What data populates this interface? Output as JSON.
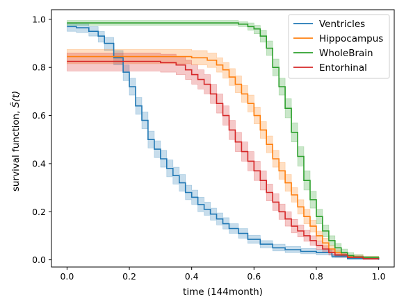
{
  "chart_data": {
    "type": "line",
    "title": "",
    "xlabel": "time (144month)",
    "ylabel_prefix": "survival function, ",
    "ylabel_math": "Ŝ(t)",
    "xlim": [
      -0.05,
      1.05
    ],
    "ylim": [
      -0.03,
      1.04
    ],
    "x_ticks": [
      0.0,
      0.2,
      0.4,
      0.6,
      0.8,
      1.0
    ],
    "x_tick_labels": [
      "0.0",
      "0.2",
      "0.4",
      "0.6",
      "0.8",
      "1.0"
    ],
    "y_ticks": [
      0.0,
      0.2,
      0.4,
      0.6,
      0.8,
      1.0
    ],
    "y_tick_labels": [
      "0.0",
      "0.2",
      "0.4",
      "0.6",
      "0.8",
      "1.0"
    ],
    "grid": false,
    "legend": "top-right",
    "confidence_band_opacity": 0.25,
    "series": [
      {
        "name": "Ventricles",
        "color": "#1f77b4",
        "x": [
          0.0,
          0.03,
          0.07,
          0.1,
          0.12,
          0.15,
          0.18,
          0.2,
          0.22,
          0.24,
          0.26,
          0.28,
          0.3,
          0.32,
          0.34,
          0.36,
          0.38,
          0.4,
          0.42,
          0.44,
          0.46,
          0.48,
          0.5,
          0.52,
          0.55,
          0.58,
          0.62,
          0.66,
          0.7,
          0.75,
          0.8,
          0.85,
          0.9,
          1.0
        ],
        "y": [
          0.97,
          0.965,
          0.95,
          0.93,
          0.9,
          0.84,
          0.78,
          0.72,
          0.64,
          0.58,
          0.5,
          0.46,
          0.42,
          0.38,
          0.35,
          0.32,
          0.28,
          0.26,
          0.23,
          0.21,
          0.19,
          0.17,
          0.15,
          0.13,
          0.11,
          0.085,
          0.065,
          0.05,
          0.042,
          0.035,
          0.03,
          0.015,
          0.005,
          0.0
        ],
        "lower": [
          0.95,
          0.945,
          0.93,
          0.905,
          0.87,
          0.81,
          0.745,
          0.685,
          0.605,
          0.545,
          0.465,
          0.425,
          0.385,
          0.345,
          0.315,
          0.285,
          0.25,
          0.23,
          0.2,
          0.185,
          0.165,
          0.145,
          0.128,
          0.11,
          0.09,
          0.068,
          0.05,
          0.037,
          0.03,
          0.025,
          0.02,
          0.008,
          0.002,
          0.0
        ],
        "upper": [
          0.985,
          0.98,
          0.97,
          0.95,
          0.925,
          0.87,
          0.81,
          0.755,
          0.675,
          0.615,
          0.535,
          0.495,
          0.455,
          0.415,
          0.385,
          0.355,
          0.31,
          0.29,
          0.26,
          0.24,
          0.215,
          0.195,
          0.175,
          0.15,
          0.13,
          0.102,
          0.08,
          0.065,
          0.056,
          0.047,
          0.042,
          0.024,
          0.012,
          0.008
        ]
      },
      {
        "name": "Hippocampus",
        "color": "#ff7f0e",
        "x": [
          0.0,
          0.1,
          0.2,
          0.3,
          0.35,
          0.4,
          0.45,
          0.48,
          0.5,
          0.52,
          0.54,
          0.56,
          0.58,
          0.6,
          0.62,
          0.64,
          0.66,
          0.68,
          0.7,
          0.72,
          0.74,
          0.76,
          0.78,
          0.8,
          0.82,
          0.84,
          0.86,
          0.88,
          0.9,
          0.95,
          1.0
        ],
        "y": [
          0.845,
          0.845,
          0.845,
          0.845,
          0.845,
          0.84,
          0.83,
          0.81,
          0.79,
          0.76,
          0.73,
          0.69,
          0.65,
          0.6,
          0.54,
          0.48,
          0.42,
          0.37,
          0.32,
          0.27,
          0.22,
          0.18,
          0.14,
          0.1,
          0.07,
          0.045,
          0.03,
          0.02,
          0.012,
          0.008,
          0.005
        ],
        "lower": [
          0.815,
          0.815,
          0.815,
          0.815,
          0.815,
          0.81,
          0.8,
          0.78,
          0.755,
          0.725,
          0.695,
          0.655,
          0.615,
          0.565,
          0.505,
          0.445,
          0.385,
          0.335,
          0.285,
          0.24,
          0.19,
          0.15,
          0.115,
          0.08,
          0.052,
          0.032,
          0.02,
          0.012,
          0.006,
          0.003,
          0.001
        ],
        "upper": [
          0.875,
          0.875,
          0.875,
          0.875,
          0.875,
          0.87,
          0.86,
          0.84,
          0.82,
          0.795,
          0.765,
          0.725,
          0.685,
          0.635,
          0.575,
          0.515,
          0.455,
          0.405,
          0.355,
          0.3,
          0.25,
          0.21,
          0.165,
          0.12,
          0.09,
          0.06,
          0.042,
          0.03,
          0.02,
          0.015,
          0.012
        ]
      },
      {
        "name": "WholeBrain",
        "color": "#2ca02c",
        "x": [
          0.0,
          0.1,
          0.2,
          0.3,
          0.4,
          0.5,
          0.55,
          0.58,
          0.6,
          0.62,
          0.64,
          0.66,
          0.68,
          0.7,
          0.72,
          0.74,
          0.76,
          0.78,
          0.8,
          0.82,
          0.84,
          0.86,
          0.88,
          0.9,
          0.92,
          0.95,
          1.0
        ],
        "y": [
          0.985,
          0.985,
          0.985,
          0.985,
          0.985,
          0.985,
          0.98,
          0.97,
          0.96,
          0.93,
          0.88,
          0.8,
          0.72,
          0.63,
          0.53,
          0.43,
          0.33,
          0.25,
          0.18,
          0.12,
          0.08,
          0.05,
          0.03,
          0.018,
          0.012,
          0.008,
          0.005
        ],
        "lower": [
          0.975,
          0.975,
          0.975,
          0.975,
          0.975,
          0.975,
          0.97,
          0.955,
          0.94,
          0.905,
          0.85,
          0.765,
          0.685,
          0.59,
          0.49,
          0.39,
          0.29,
          0.215,
          0.15,
          0.095,
          0.06,
          0.035,
          0.018,
          0.009,
          0.005,
          0.003,
          0.001
        ],
        "upper": [
          0.995,
          0.995,
          0.995,
          0.995,
          0.995,
          0.995,
          0.99,
          0.985,
          0.975,
          0.955,
          0.91,
          0.835,
          0.755,
          0.67,
          0.57,
          0.47,
          0.37,
          0.285,
          0.21,
          0.145,
          0.1,
          0.068,
          0.045,
          0.03,
          0.022,
          0.015,
          0.012
        ]
      },
      {
        "name": "Entorhinal",
        "color": "#d62728",
        "x": [
          0.0,
          0.1,
          0.2,
          0.25,
          0.3,
          0.35,
          0.38,
          0.4,
          0.42,
          0.44,
          0.46,
          0.48,
          0.5,
          0.52,
          0.54,
          0.56,
          0.58,
          0.6,
          0.62,
          0.64,
          0.66,
          0.68,
          0.7,
          0.72,
          0.74,
          0.76,
          0.78,
          0.8,
          0.82,
          0.84,
          0.86,
          0.9,
          0.95,
          1.0
        ],
        "y": [
          0.825,
          0.825,
          0.825,
          0.825,
          0.82,
          0.81,
          0.79,
          0.77,
          0.75,
          0.73,
          0.69,
          0.65,
          0.6,
          0.54,
          0.49,
          0.45,
          0.41,
          0.37,
          0.33,
          0.28,
          0.24,
          0.2,
          0.17,
          0.14,
          0.12,
          0.1,
          0.08,
          0.06,
          0.045,
          0.03,
          0.02,
          0.01,
          0.005,
          0.003
        ],
        "lower": [
          0.785,
          0.785,
          0.785,
          0.785,
          0.78,
          0.77,
          0.75,
          0.73,
          0.71,
          0.69,
          0.65,
          0.61,
          0.56,
          0.5,
          0.45,
          0.41,
          0.37,
          0.33,
          0.29,
          0.245,
          0.205,
          0.168,
          0.14,
          0.112,
          0.095,
          0.077,
          0.06,
          0.043,
          0.031,
          0.019,
          0.011,
          0.004,
          0.001,
          0.0
        ],
        "upper": [
          0.86,
          0.86,
          0.86,
          0.86,
          0.855,
          0.845,
          0.83,
          0.81,
          0.79,
          0.77,
          0.73,
          0.69,
          0.64,
          0.58,
          0.53,
          0.49,
          0.45,
          0.41,
          0.37,
          0.315,
          0.275,
          0.232,
          0.2,
          0.168,
          0.145,
          0.123,
          0.1,
          0.077,
          0.059,
          0.041,
          0.029,
          0.016,
          0.009,
          0.006
        ]
      }
    ]
  }
}
